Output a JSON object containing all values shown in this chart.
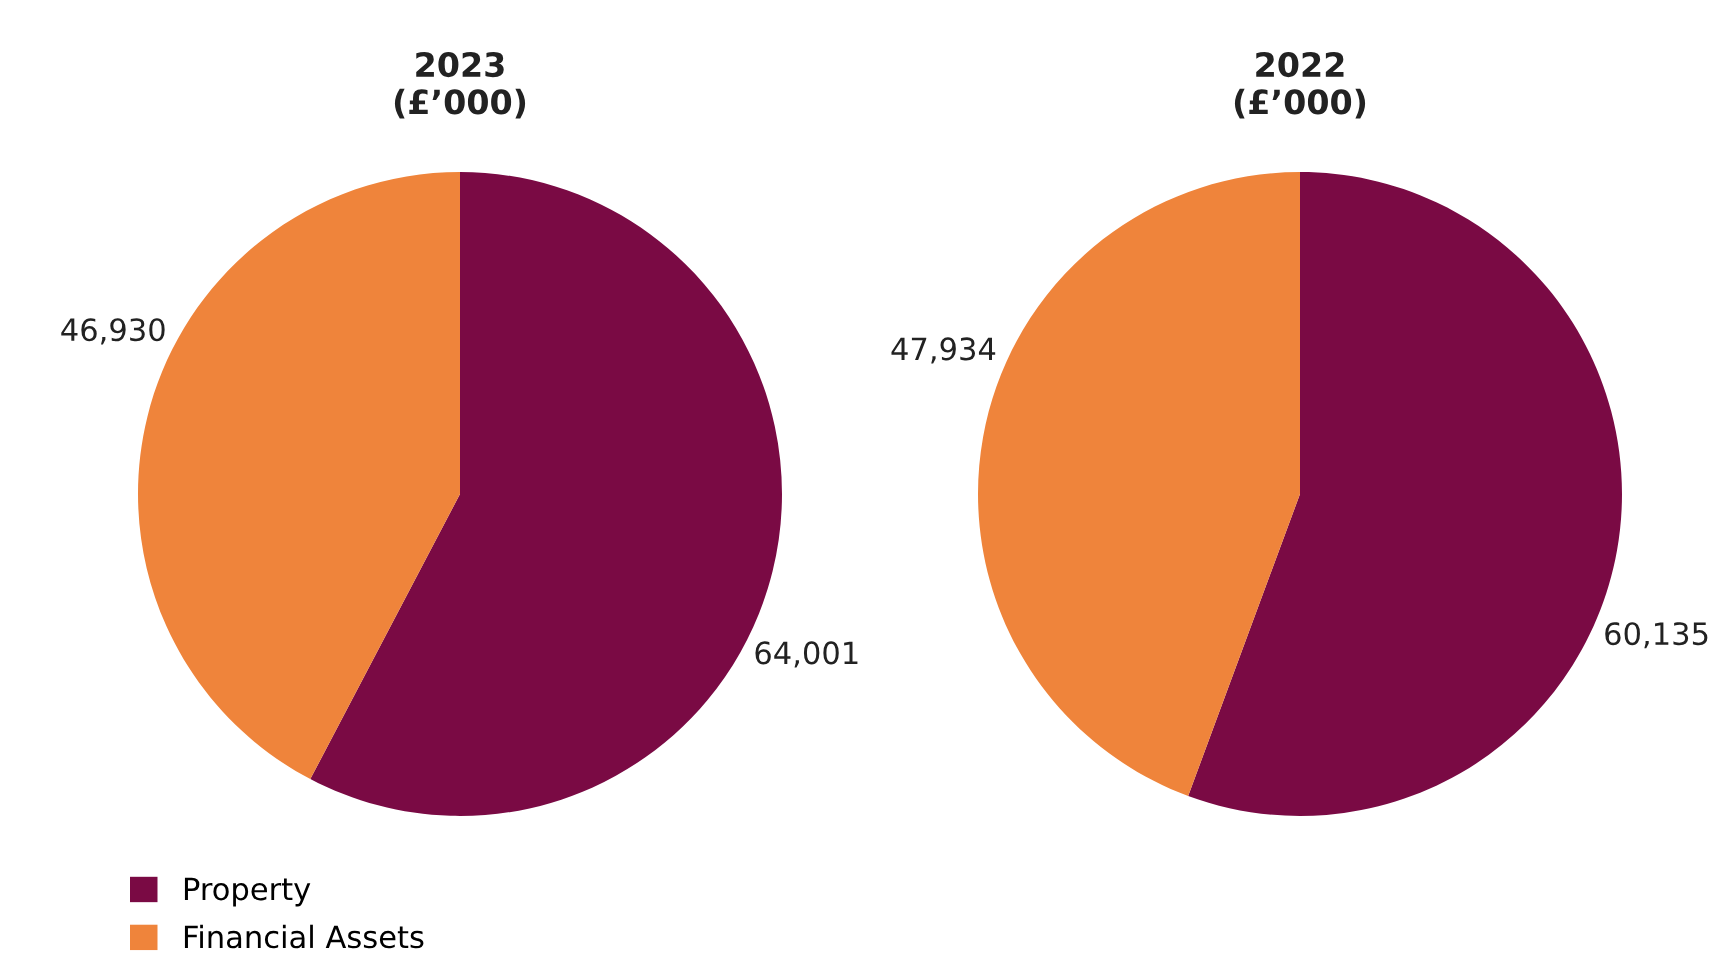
{
  "chart_data": [
    {
      "type": "pie",
      "title": "2023\n(£’000)",
      "categories": [
        "Property",
        "Financial Assets"
      ],
      "values": [
        64001,
        46930
      ],
      "value_labels": [
        "64,001",
        "46,930"
      ],
      "colors": [
        "#7a0a44",
        "#ef843b"
      ],
      "legend": "bottom left"
    },
    {
      "type": "pie",
      "title": "2022\n(£’000)",
      "categories": [
        null,
        null
      ],
      "values": [
        60135,
        47934
      ],
      "value_labels": [
        "60,135",
        "47,934"
      ],
      "colors": [
        "#7a0a44",
        "#ef843b"
      ],
      "legend": false
    }
  ]
}
